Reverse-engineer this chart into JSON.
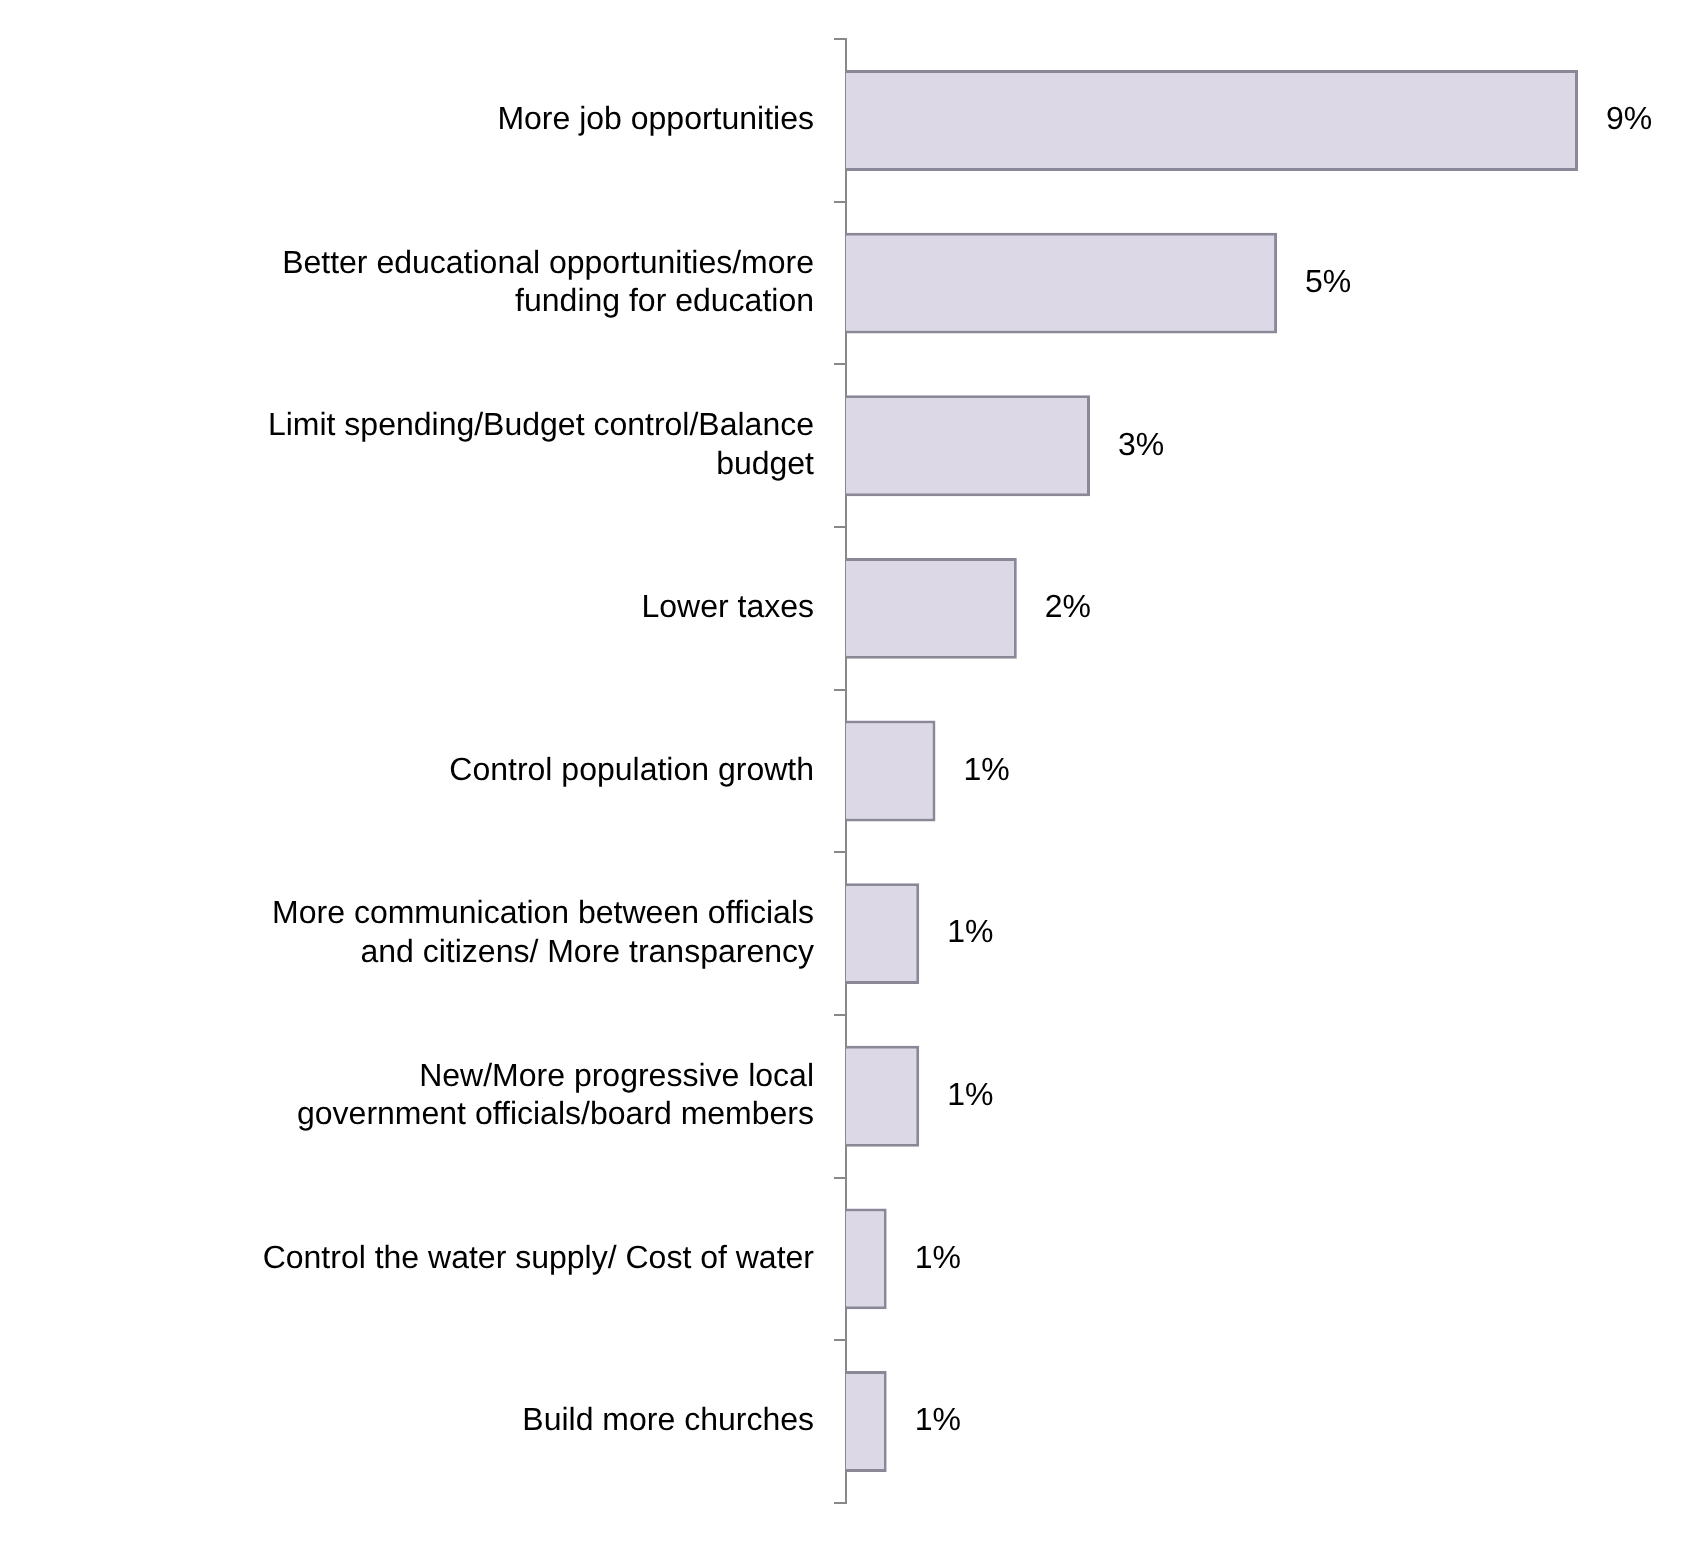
{
  "chart_data": {
    "type": "bar",
    "orientation": "horizontal",
    "categories": [
      "More job opportunities",
      "Better educational opportunities/more funding for education",
      "Limit spending/Budget control/Balance budget",
      "Lower taxes",
      "Control population growth",
      "More communication between officials and citizens/ More transparency",
      "New/More progressive local government officials/board members",
      "Control the water supply/ Cost of water",
      "Build more churches"
    ],
    "values": [
      9,
      5.3,
      3,
      2.1,
      1.1,
      0.9,
      0.9,
      0.5,
      0.5
    ],
    "value_labels": [
      "9%",
      "5%",
      "3%",
      "2%",
      "1%",
      "1%",
      "1%",
      "1%",
      "1%"
    ],
    "color": "#dcd8e6"
  }
}
